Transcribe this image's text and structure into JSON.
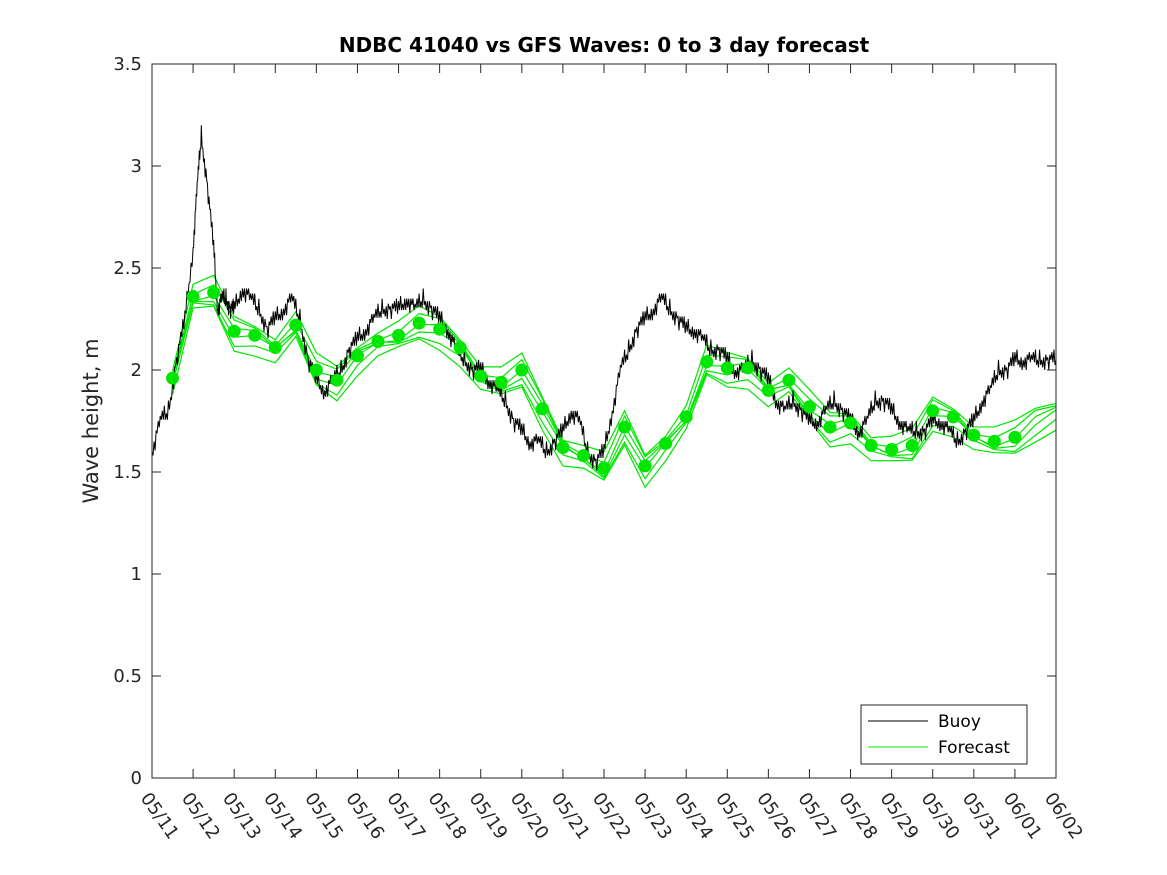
{
  "chart_data": {
    "type": "line",
    "title": "NDBC 41040 vs GFS Waves: 0 to 3 day forecast",
    "xlabel": "",
    "ylabel": "Wave height, m",
    "xlim": [
      "05/11",
      "06/02"
    ],
    "ylim": [
      0,
      3.5
    ],
    "y_ticks": [
      0,
      0.5,
      1,
      1.5,
      2,
      2.5,
      3,
      3.5
    ],
    "y_tick_labels": [
      "0",
      "0.5",
      "1",
      "1.5",
      "2",
      "2.5",
      "3",
      "3.5"
    ],
    "x_tick_labels": [
      "05/11",
      "05/12",
      "05/13",
      "05/14",
      "05/15",
      "05/16",
      "05/17",
      "05/18",
      "05/19",
      "05/20",
      "05/21",
      "05/22",
      "05/23",
      "05/24",
      "05/25",
      "05/26",
      "05/27",
      "05/28",
      "05/29",
      "05/30",
      "05/31",
      "06/01",
      "06/02"
    ],
    "x_unit": "days since 05/11",
    "legend": {
      "placement": "bottom-right",
      "entries": [
        {
          "label": "Buoy",
          "color": "#000000"
        },
        {
          "label": "Forecast",
          "color": "#00e600"
        }
      ]
    },
    "series": [
      {
        "name": "Buoy",
        "color": "#000000",
        "x": [
          0,
          0.2,
          0.4,
          0.6,
          0.8,
          1.0,
          1.1,
          1.2,
          1.35,
          1.5,
          1.6,
          1.7,
          1.8,
          1.9,
          2.0,
          2.2,
          2.4,
          2.6,
          2.8,
          3.0,
          3.2,
          3.4,
          3.6,
          3.8,
          4.0,
          4.2,
          4.4,
          4.6,
          4.8,
          5.0,
          5.2,
          5.4,
          5.6,
          5.8,
          6.0,
          6.2,
          6.4,
          6.6,
          6.8,
          7.0,
          7.2,
          7.4,
          7.6,
          7.8,
          8.0,
          8.2,
          8.4,
          8.6,
          8.8,
          9.0,
          9.2,
          9.4,
          9.6,
          9.8,
          10.0,
          10.2,
          10.4,
          10.6,
          10.8,
          11.0,
          11.2,
          11.4,
          11.6,
          11.8,
          12.0,
          12.2,
          12.4,
          12.6,
          12.8,
          13.0,
          13.2,
          13.4,
          13.6,
          13.8,
          14.0,
          14.2,
          14.4,
          14.6,
          14.8,
          15.0,
          15.2,
          15.4,
          15.6,
          15.8,
          16.0,
          16.2,
          16.4,
          16.6,
          16.8,
          17.0,
          17.2,
          17.4,
          17.6,
          17.8,
          18.0,
          18.2,
          18.4,
          18.6,
          18.8,
          19.0,
          19.2,
          19.4,
          19.6,
          19.8,
          20.0,
          20.2,
          20.4,
          20.6,
          20.8,
          21.0,
          21.2,
          21.4,
          21.6,
          21.8,
          22.0
        ],
        "y": [
          1.6,
          1.75,
          1.8,
          2.05,
          2.25,
          2.6,
          2.9,
          3.15,
          2.9,
          2.6,
          2.3,
          2.35,
          2.35,
          2.3,
          2.3,
          2.4,
          2.35,
          2.3,
          2.2,
          2.25,
          2.3,
          2.35,
          2.25,
          2.05,
          1.95,
          1.9,
          1.95,
          2.0,
          2.1,
          2.15,
          2.2,
          2.25,
          2.3,
          2.3,
          2.3,
          2.35,
          2.3,
          2.35,
          2.3,
          2.25,
          2.2,
          2.1,
          2.05,
          2.0,
          2.0,
          1.95,
          1.9,
          1.85,
          1.75,
          1.7,
          1.65,
          1.65,
          1.6,
          1.65,
          1.7,
          1.8,
          1.75,
          1.6,
          1.55,
          1.6,
          1.8,
          2.0,
          2.1,
          2.2,
          2.25,
          2.3,
          2.35,
          2.3,
          2.25,
          2.2,
          2.2,
          2.15,
          2.1,
          2.1,
          2.05,
          2.0,
          2.0,
          2.05,
          2.0,
          1.95,
          1.85,
          1.8,
          1.85,
          1.8,
          1.75,
          1.75,
          1.8,
          1.85,
          1.8,
          1.75,
          1.7,
          1.75,
          1.85,
          1.85,
          1.8,
          1.75,
          1.7,
          1.7,
          1.7,
          1.75,
          1.75,
          1.7,
          1.65,
          1.7,
          1.75,
          1.85,
          1.9,
          2.0,
          2.0,
          2.05,
          2.05,
          2.05,
          2.05,
          2.05,
          2.05
        ]
      },
      {
        "name": "Forecast",
        "color": "#00e600",
        "dots_x": [
          0.5,
          1.0,
          1.5,
          2.0,
          2.5,
          3.0,
          3.5,
          4.0,
          4.5,
          5.0,
          5.5,
          6.0,
          6.5,
          7.0,
          7.5,
          8.0,
          8.5,
          9.0,
          9.5,
          10.0,
          10.5,
          11.0,
          11.5,
          12.0,
          12.5,
          13.0,
          13.5,
          14.0,
          14.5,
          15.0,
          15.5,
          16.0,
          16.5,
          17.0,
          17.5,
          18.0,
          18.5,
          19.0,
          19.5,
          20.0,
          20.5,
          21.0
        ],
        "dots_y": [
          1.96,
          2.36,
          2.38,
          2.19,
          2.17,
          2.11,
          2.22,
          2.0,
          1.95,
          2.07,
          2.14,
          2.17,
          2.23,
          2.2,
          2.11,
          1.97,
          1.94,
          2.0,
          1.81,
          1.62,
          1.58,
          1.52,
          1.72,
          1.53,
          1.64,
          1.77,
          2.04,
          2.01,
          2.01,
          1.9,
          1.95,
          1.82,
          1.72,
          1.74,
          1.63,
          1.61,
          1.63,
          1.8,
          1.77,
          1.68,
          1.65,
          1.67
        ],
        "x": [
          0.5,
          1.0,
          1.5,
          2.0,
          2.5,
          3.0,
          3.5,
          4.0,
          4.5,
          5.0,
          5.5,
          6.0,
          6.5,
          7.0,
          7.5,
          8.0,
          8.5,
          9.0,
          9.5,
          10.0,
          10.5,
          11.0,
          11.5,
          12.0,
          12.5,
          13.0,
          13.5,
          14.0,
          14.5,
          15.0,
          15.5,
          16.0,
          16.5,
          17.0,
          17.5,
          18.0,
          18.5,
          19.0,
          19.5,
          20.0,
          20.5,
          21.0,
          21.5,
          22.0
        ],
        "y": [
          1.96,
          2.36,
          2.38,
          2.19,
          2.17,
          2.11,
          2.22,
          2.0,
          1.95,
          2.07,
          2.14,
          2.17,
          2.23,
          2.2,
          2.11,
          1.97,
          1.94,
          2.0,
          1.81,
          1.62,
          1.58,
          1.52,
          1.72,
          1.53,
          1.64,
          1.77,
          2.04,
          2.01,
          2.01,
          1.9,
          1.95,
          1.82,
          1.72,
          1.74,
          1.63,
          1.61,
          1.63,
          1.8,
          1.77,
          1.68,
          1.65,
          1.67,
          1.75,
          1.8
        ]
      }
    ]
  }
}
